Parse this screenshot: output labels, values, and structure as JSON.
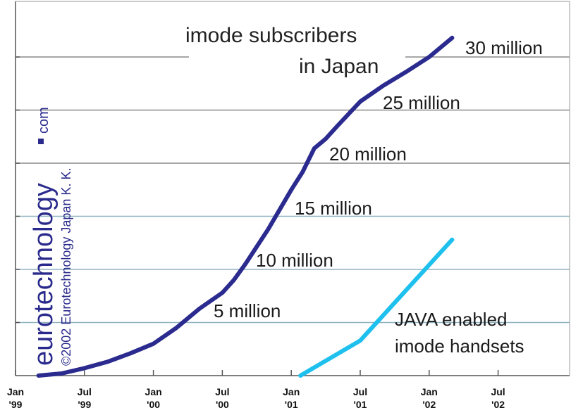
{
  "chart_data": {
    "type": "line",
    "title_lines": [
      "imode subscribers",
      "in Japan"
    ],
    "x_ticks": [
      {
        "month": "Jan",
        "year": "'99",
        "t": 0
      },
      {
        "month": "Jul",
        "year": "'99",
        "t": 6
      },
      {
        "month": "Jan",
        "year": "'00",
        "t": 12
      },
      {
        "month": "Jul",
        "year": "'00",
        "t": 18
      },
      {
        "month": "Jan",
        "year": "'01",
        "t": 24
      },
      {
        "month": "Jul",
        "year": "'01",
        "t": 30
      },
      {
        "month": "Jan",
        "year": "'02",
        "t": 36
      },
      {
        "month": "Jul",
        "year": "'02",
        "t": 42
      }
    ],
    "xlim": [
      0,
      48
    ],
    "ylim": [
      0,
      35
    ],
    "grid_values": [
      5,
      10,
      15,
      20,
      25,
      30
    ],
    "grid_labels": [
      "5 million",
      "10 million",
      "15 million",
      "20 million",
      "25 million",
      "30 million"
    ],
    "series": [
      {
        "color": "#2b2b8f",
        "points": [
          [
            2,
            0.0
          ],
          [
            4,
            0.2
          ],
          [
            6,
            0.7
          ],
          [
            8,
            1.3
          ],
          [
            10,
            2.1
          ],
          [
            12,
            3.0
          ],
          [
            14,
            4.5
          ],
          [
            16,
            6.3
          ],
          [
            18,
            7.8
          ],
          [
            19,
            9.0
          ],
          [
            20,
            10.5
          ],
          [
            22,
            13.8
          ],
          [
            24,
            17.5
          ],
          [
            25,
            19.2
          ],
          [
            26,
            21.4
          ],
          [
            27,
            22.3
          ],
          [
            28,
            23.5
          ],
          [
            30,
            25.8
          ],
          [
            32,
            27.3
          ],
          [
            34,
            28.6
          ],
          [
            36,
            30.0
          ],
          [
            38,
            31.8
          ]
        ]
      },
      {
        "name": "JAVA enabled imode handsets",
        "color": "#1ec0ee",
        "points": [
          [
            24.8,
            0.0
          ],
          [
            30,
            3.3
          ],
          [
            38,
            12.8
          ]
        ]
      }
    ],
    "series_label_lines": [
      "JAVA enabled",
      "imode handsets"
    ],
    "watermark": {
      "brand": "eurotechnology",
      "brand_suffix": "com",
      "copyright": "©2002 Eurotechnology Japan K. K."
    }
  }
}
